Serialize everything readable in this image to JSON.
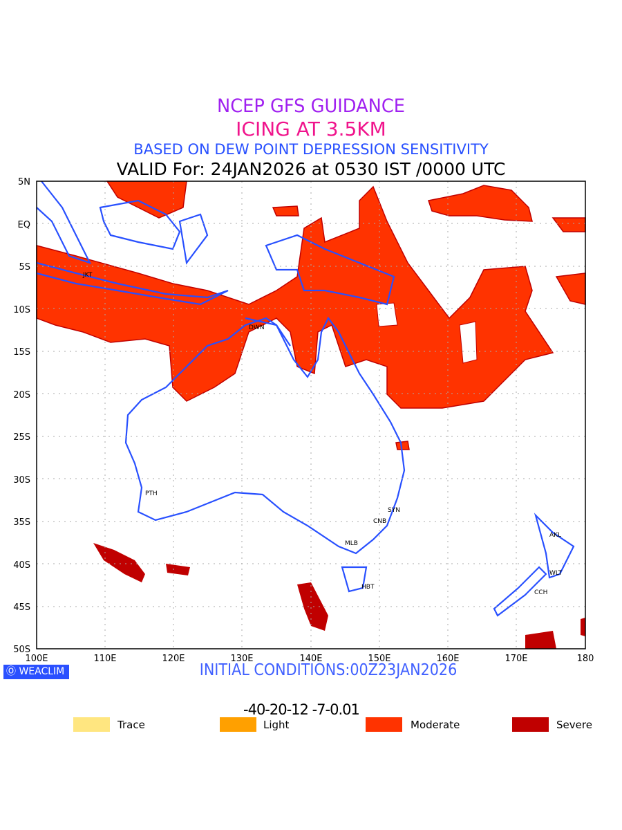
{
  "title": {
    "line1": "NCEP GFS GUIDANCE",
    "line2": "ICING AT 3.5KM",
    "line3": "BASED ON DEW POINT DEPRESSION SENSITIVITY",
    "line4": "VALID For: 24JAN2026 at 0530 IST /0000 UTC"
  },
  "map": {
    "lat_labels": [
      "5N",
      "EQ",
      "5S",
      "10S",
      "15S",
      "20S",
      "25S",
      "30S",
      "35S",
      "40S",
      "45S",
      "50S"
    ],
    "lon_labels": [
      "100E",
      "110E",
      "120E",
      "130E",
      "140E",
      "150E",
      "160E",
      "170E",
      "180"
    ],
    "cities": [
      "JKT",
      "DWN",
      "PTH",
      "SYN",
      "CNB",
      "MLB",
      "HBT",
      "AKL",
      "WLT",
      "CCH"
    ],
    "colors": {
      "coast": "#2850ff",
      "moderate": "#ff3300",
      "severe": "#c00000",
      "grid": "#aaaaaa"
    }
  },
  "footer": {
    "logo": "WEACLIM",
    "initial": "INITIAL CONDITIONS:00Z23JAN2026"
  },
  "colorbar": {
    "labels": "-40-20-12 -7-0.01",
    "colors": [
      "#ffe680",
      "#ffa000",
      "#ff3300",
      "#c00000"
    ]
  },
  "legend": [
    {
      "label": "Trace",
      "color": "#ffe680"
    },
    {
      "label": "Light",
      "color": "#ffa000"
    },
    {
      "label": "Moderate",
      "color": "#ff3300"
    },
    {
      "label": "Severe",
      "color": "#c00000"
    }
  ]
}
